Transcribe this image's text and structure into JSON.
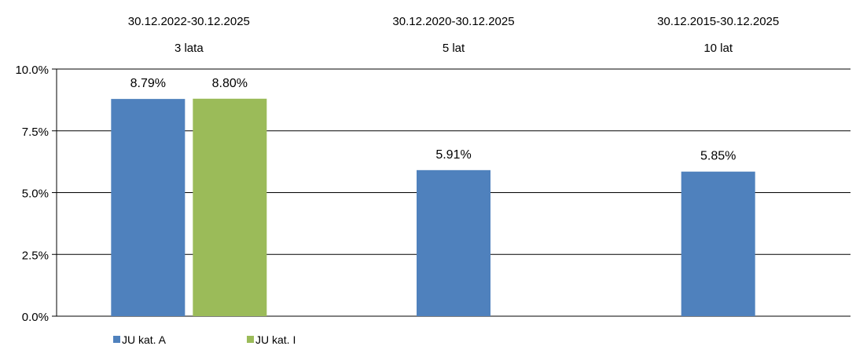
{
  "chart_data": {
    "type": "bar",
    "categories": [
      {
        "period": "30.12.2022-30.12.2025",
        "label": "3 lata"
      },
      {
        "period": "30.12.2020-30.12.2025",
        "label": "5 lat"
      },
      {
        "period": "30.12.2015-30.12.2025",
        "label": "10 lat"
      }
    ],
    "series": [
      {
        "name": "JU kat. A",
        "color": "#4f81bd",
        "values": [
          8.79,
          5.91,
          5.85
        ],
        "labels": [
          "8.79%",
          "5.91%",
          "5.85%"
        ]
      },
      {
        "name": "JU kat. I",
        "color": "#9bbb59",
        "values": [
          8.8,
          null,
          null
        ],
        "labels": [
          "8.80%",
          "",
          ""
        ]
      }
    ],
    "yticks": [
      "0.0%",
      "2.5%",
      "5.0%",
      "7.5%",
      "10.0%"
    ],
    "ytick_values": [
      0,
      2.5,
      5,
      7.5,
      10
    ],
    "ylim": [
      0,
      10
    ],
    "grid": true,
    "legend_position": "bottom-left"
  }
}
